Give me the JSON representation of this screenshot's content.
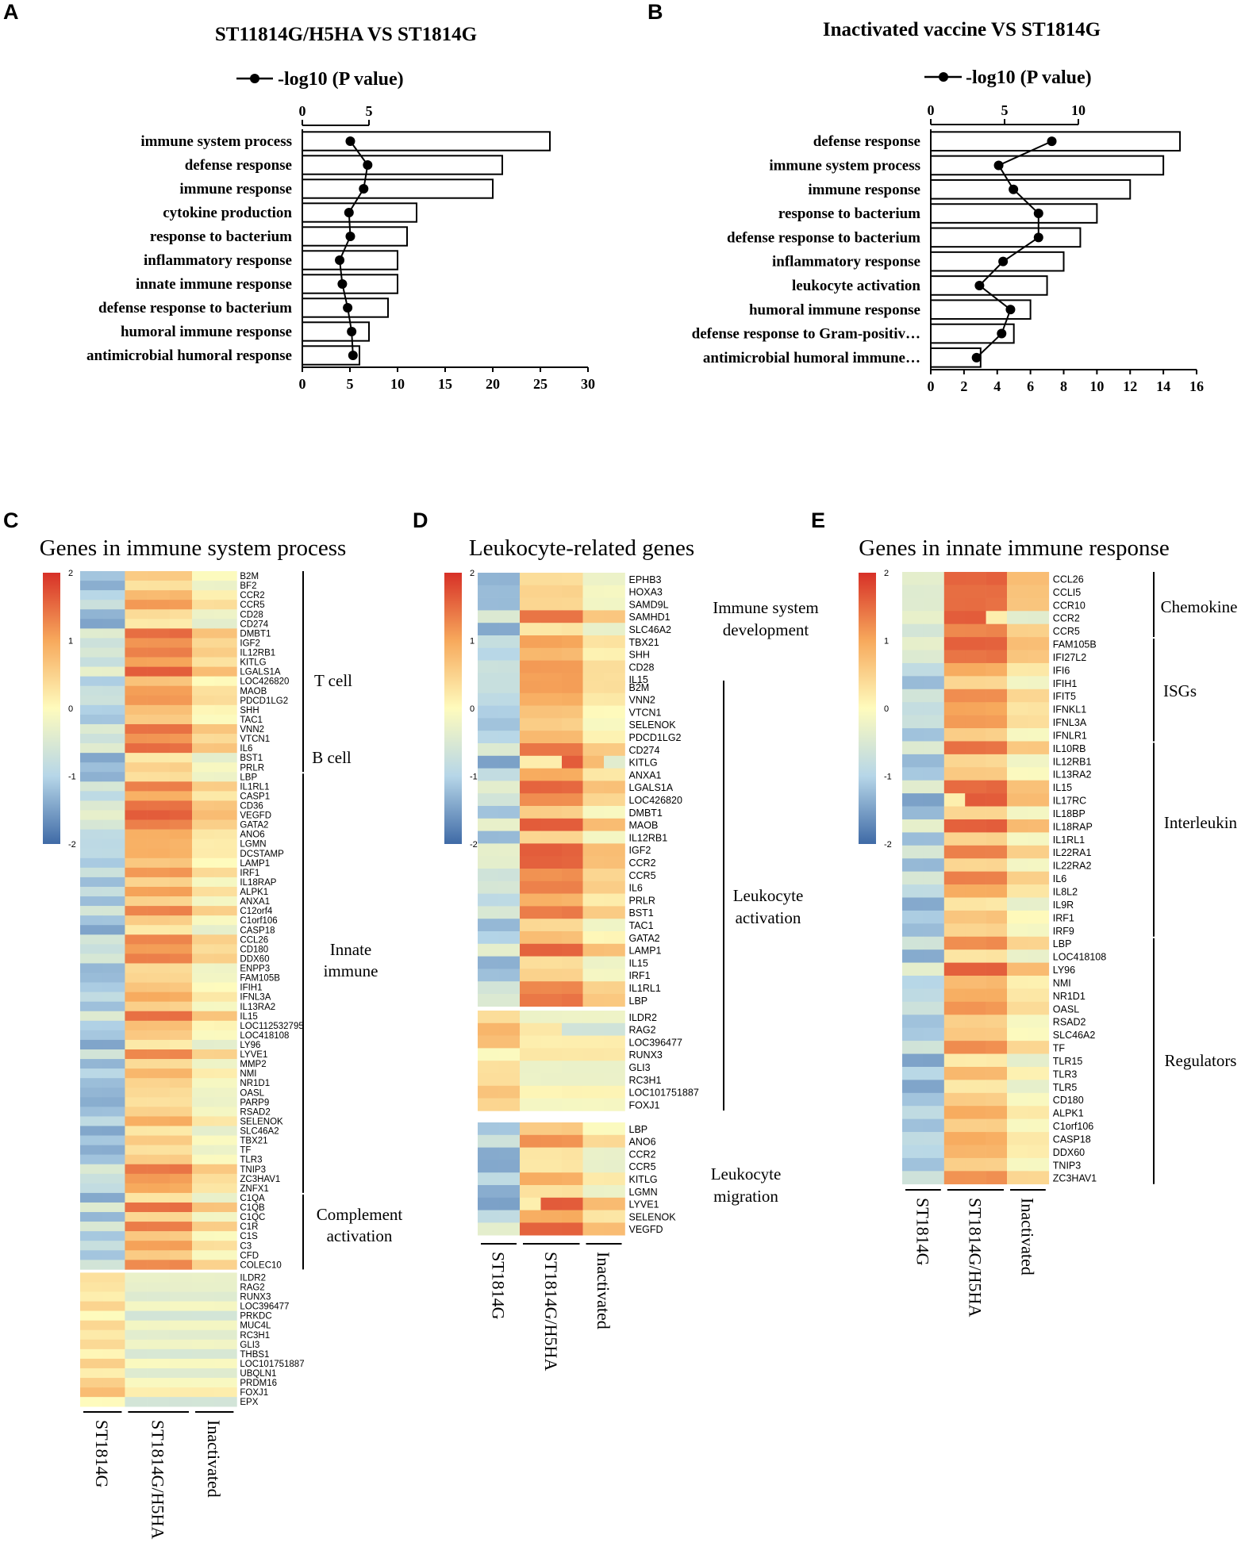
{
  "panels": {
    "a": "A",
    "b": "B",
    "c": "C",
    "d": "D",
    "e": "E"
  },
  "chart_data": [
    {
      "type": "bar",
      "panel": "A",
      "title": "ST11814G/H5HA VS ST1814G",
      "legend": "-log10 (P value)",
      "categories": [
        "immune system process",
        "defense response",
        "immune response",
        "cytokine production",
        "response to bacterium",
        "inflammatory response",
        "innate immune response",
        "defense response to bacterium",
        "humoral immune response",
        "antimicrobial humoral response"
      ],
      "values": [
        26,
        21,
        20,
        12,
        11,
        10,
        10,
        9,
        7,
        6
      ],
      "line_values": [
        3.6,
        4.9,
        4.6,
        3.5,
        3.6,
        2.8,
        3.0,
        3.4,
        3.7,
        3.8
      ],
      "xlim": [
        0,
        30
      ],
      "x_ticks": [
        "0",
        "5",
        "10",
        "15",
        "20",
        "25",
        "30"
      ],
      "top_xlim": [
        0,
        5
      ],
      "top_ticks": [
        "0",
        "5"
      ]
    },
    {
      "type": "bar",
      "panel": "B",
      "title": "Inactivated vaccine VS ST1814G",
      "legend": "-log10 (P value)",
      "categories": [
        "defense response",
        "immune system process",
        "immune response",
        "response to bacterium",
        "defense response to bacterium",
        "inflammatory response",
        "leukocyte activation",
        "humoral immune response",
        "defense response to Gram-positiv…",
        "antimicrobial humoral immune…"
      ],
      "values": [
        15,
        14,
        12,
        10,
        9,
        8,
        7,
        6,
        5,
        3
      ],
      "line_values": [
        8.2,
        4.6,
        5.6,
        7.3,
        7.3,
        4.9,
        3.3,
        5.4,
        4.8,
        3.1
      ],
      "xlim": [
        0,
        16
      ],
      "x_ticks": [
        "0",
        "2",
        "4",
        "6",
        "8",
        "10",
        "12",
        "14",
        "16"
      ],
      "top_xlim": [
        0,
        10
      ],
      "top_ticks": [
        "0",
        "5",
        "10"
      ]
    },
    {
      "type": "heatmap",
      "panel": "C",
      "title": "Genes in immune system process",
      "color_scale": {
        "min": -2,
        "max": 2,
        "ticks": [
          "2",
          "1",
          "0",
          "-1",
          "-2"
        ]
      },
      "groups": [
        "ST1814G",
        "ST1814G/H5HA",
        "Inactivated"
      ],
      "genes": [
        "B2M",
        "BF2",
        "CCR2",
        "CCR5",
        "CD28",
        "CD274",
        "DMBT1",
        "IGF2",
        "IL12RB1",
        "KITLG",
        "LGALS1A",
        "LOC426820",
        "MAOB",
        "PDCD1LG2",
        "SHH",
        "TAC1",
        "VNN2",
        "VTCN1",
        "IL6",
        "BST1",
        "PRLR",
        "LBP",
        "IL1RL1",
        "CASP1",
        "CD36",
        "VEGFD",
        "GATA2",
        "ANO6",
        "LGMN",
        "DCSTAMP",
        "LAMP1",
        "IRF1",
        "IL18RAP",
        "ALPK1",
        "ANXA1",
        "C12orf4",
        "C1orf106",
        "CASP18",
        "CCL26",
        "CD180",
        "DDX60",
        "ENPP3",
        "FAM105B",
        "IFIH1",
        "IFNL3A",
        "IL13RA2",
        "IL15",
        "LOC112532795",
        "LOC418108",
        "LY96",
        "LYVE1",
        "MMP2",
        "NMI",
        "NR1D1",
        "OASL",
        "PARP9",
        "RSAD2",
        "SELENOK",
        "SLC46A2",
        "TBX21",
        "TF",
        "TLR3",
        "TNIP3",
        "ZC3HAV1",
        "ZNFX1",
        "C1QA",
        "C1QB",
        "C1QC",
        "C1R",
        "C1S",
        "C3",
        "CFD",
        "COLEC10",
        "ILDR2",
        "RAG2",
        "RUNX3",
        "LOC396477",
        "PRKDC",
        "MUC4L",
        "RC3H1",
        "GLI3",
        "THBS1",
        "LOC101751887",
        "UBQLN1",
        "PRDM16",
        "FOXJ1",
        "EPX"
      ],
      "categories": [
        "T cell",
        "B cell",
        "Innate immune",
        "Complement activation"
      ]
    },
    {
      "type": "heatmap",
      "panel": "D",
      "title": "Leukocyte-related genes",
      "color_scale": {
        "min": -2,
        "max": 2,
        "ticks": [
          "2",
          "1",
          "0",
          "-1",
          "-2"
        ]
      },
      "groups": [
        "ST1814G",
        "ST1814G/H5HA",
        "Inactivated"
      ],
      "blocks": [
        {
          "category": "Immune system development",
          "genes": [
            "EPHB3",
            "HOXA3",
            "SAMD9L",
            "SAMHD1",
            "SLC46A2",
            "TBX21",
            "SHH",
            "CD28",
            "IL15"
          ]
        },
        {
          "category": "Leukocyte activation",
          "genes": [
            "B2M",
            "VNN2",
            "VTCN1",
            "SELENOK",
            "PDCD1LG2",
            "CD274",
            "KITLG",
            "ANXA1",
            "LGALS1A",
            "LOC426820",
            "DMBT1",
            "MAOB",
            "IL12RB1",
            "IGF2",
            "CCR2",
            "CCR5",
            "IL6",
            "PRLR",
            "BST1",
            "TAC1",
            "GATA2",
            "LAMP1",
            "IL15",
            "IRF1",
            "IL1RL1",
            "LBP"
          ]
        },
        {
          "category": "",
          "genes": [
            "ILDR2",
            "RAG2",
            "LOC396477",
            "RUNX3",
            "GLI3",
            "RC3H1",
            "LOC101751887",
            "FOXJ1"
          ]
        },
        {
          "category": "Leukocyte migration",
          "genes": [
            "LBP",
            "ANO6",
            "CCR2",
            "CCR5",
            "KITLG",
            "LGMN",
            "LYVE1",
            "SELENOK",
            "VEGFD"
          ]
        }
      ]
    },
    {
      "type": "heatmap",
      "panel": "E",
      "title": "Genes in innate immune response",
      "color_scale": {
        "min": -2,
        "max": 2,
        "ticks": [
          "2",
          "1",
          "0",
          "-1",
          "-2"
        ]
      },
      "groups": [
        "ST1814G",
        "ST1814G/H5HA",
        "Inactivated"
      ],
      "genes": [
        "CCL26",
        "CCLI5",
        "CCR10",
        "CCR2",
        "CCR5",
        "FAM105B",
        "IFI27L2",
        "IFI6",
        "IFIH1",
        "IFIT5",
        "IFNKL1",
        "IFNL3A",
        "IFNLR1",
        "IL10RB",
        "IL12RB1",
        "IL13RA2",
        "IL15",
        "IL17RC",
        "IL18BP",
        "IL18RAP",
        "IL1RL1",
        "IL22RA1",
        "IL22RA2",
        "IL6",
        "IL8L2",
        "IL9R",
        "IRF1",
        "IRF9",
        "LBP",
        "LOC418108",
        "LY96",
        "NMI",
        "NR1D1",
        "OASL",
        "RSAD2",
        "SLC46A2",
        "TF",
        "TLR15",
        "TLR3",
        "TLR5",
        "CD180",
        "ALPK1",
        "C1orf106",
        "CASP18",
        "DDX60",
        "TNIP3",
        "ZC3HAV1"
      ],
      "categories": [
        "Chemokine",
        "ISGs",
        "Interleukin",
        "Regulators"
      ]
    }
  ]
}
